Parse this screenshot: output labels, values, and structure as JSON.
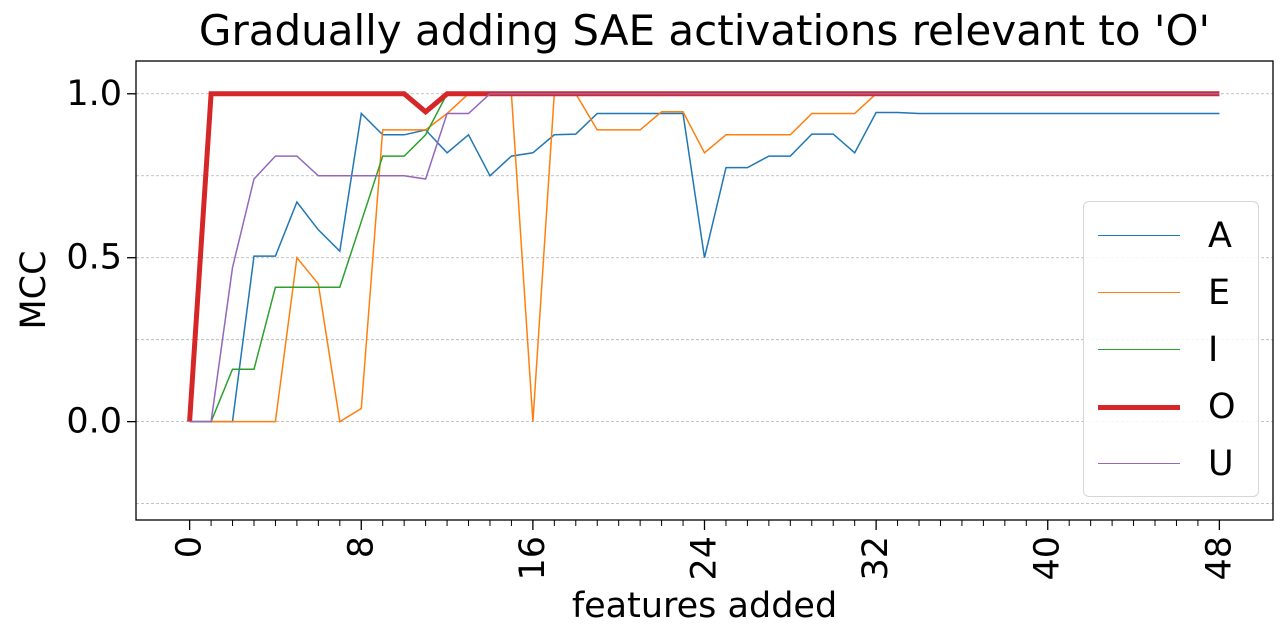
{
  "chart_data": {
    "type": "line",
    "title": "Gradually adding SAE activations relevant to 'O'",
    "xlabel": "features added",
    "ylabel": "MCC",
    "xlim": [
      -2.5,
      50.5
    ],
    "ylim": [
      -0.3,
      1.1
    ],
    "x_major_ticks": [
      0,
      8,
      16,
      24,
      32,
      40,
      48
    ],
    "x_tick_labels": [
      "0",
      "8",
      "16",
      "24",
      "32",
      "40",
      "48"
    ],
    "y_major_ticks": [
      0.0,
      0.5,
      1.0
    ],
    "y_tick_labels": [
      "0.0",
      "0.5",
      "1.0"
    ],
    "y_grid": [
      -0.25,
      0.0,
      0.25,
      0.5,
      0.75,
      1.0
    ],
    "grid": "horizontal dashed",
    "legend_position": "center-right",
    "x": [
      0,
      1,
      2,
      3,
      4,
      5,
      6,
      7,
      8,
      9,
      10,
      11,
      12,
      13,
      14,
      15,
      16,
      17,
      18,
      19,
      20,
      21,
      22,
      23,
      24,
      25,
      26,
      27,
      28,
      29,
      30,
      31,
      32,
      33,
      34,
      35,
      36,
      37,
      38,
      39,
      40,
      41,
      42,
      43,
      44,
      45,
      46,
      47,
      48
    ],
    "series": [
      {
        "name": "A",
        "color": "#1f77b4",
        "width": 1.5,
        "values": [
          0,
          0,
          0,
          0.505,
          0.505,
          0.67,
          0.585,
          0.52,
          0.94,
          0.875,
          0.875,
          0.89,
          0.82,
          0.875,
          0.75,
          0.81,
          0.82,
          0.875,
          0.877,
          0.94,
          0.94,
          0.94,
          0.94,
          0.94,
          0.5,
          0.775,
          0.775,
          0.81,
          0.81,
          0.877,
          0.877,
          0.82,
          0.943,
          0.943,
          0.94,
          0.94,
          0.94,
          0.94,
          0.94,
          0.94,
          0.94,
          0.94,
          0.94,
          0.94,
          0.94,
          0.94,
          0.94,
          0.94,
          0.94
        ]
      },
      {
        "name": "E",
        "color": "#ff7f0e",
        "width": 1.5,
        "values": [
          0,
          0,
          0,
          0,
          0,
          0.5,
          0.42,
          0,
          0.04,
          0.89,
          0.89,
          0.89,
          0.94,
          1.0,
          1.0,
          1.0,
          0,
          1.0,
          1.0,
          0.89,
          0.89,
          0.89,
          0.945,
          0.945,
          0.82,
          0.875,
          0.875,
          0.875,
          0.875,
          0.94,
          0.94,
          0.94,
          1.0,
          1.0,
          1.0,
          1.0,
          1.0,
          1.0,
          1.0,
          1.0,
          1.0,
          1.0,
          1.0,
          1.0,
          1.0,
          1.0,
          1.0,
          1.0,
          1.0
        ]
      },
      {
        "name": "I",
        "color": "#2ca02c",
        "width": 1.5,
        "values": [
          0,
          0,
          0.16,
          0.16,
          0.41,
          0.41,
          0.41,
          0.41,
          0.61,
          0.81,
          0.81,
          0.875,
          1.0,
          1.0,
          1.0,
          1.0,
          1.0,
          1.0,
          1.0,
          1.0,
          1.0,
          1.0,
          1.0,
          1.0,
          1.0,
          1.0,
          1.0,
          1.0,
          1.0,
          1.0,
          1.0,
          1.0,
          1.0,
          1.0,
          1.0,
          1.0,
          1.0,
          1.0,
          1.0,
          1.0,
          1.0,
          1.0,
          1.0,
          1.0,
          1.0,
          1.0,
          1.0,
          1.0,
          1.0
        ]
      },
      {
        "name": "O",
        "color": "#d62728",
        "width": 5,
        "values": [
          0,
          1.0,
          1.0,
          1.0,
          1.0,
          1.0,
          1.0,
          1.0,
          1.0,
          1.0,
          1.0,
          0.945,
          1.0,
          1.0,
          1.0,
          1.0,
          1.0,
          1.0,
          1.0,
          1.0,
          1.0,
          1.0,
          1.0,
          1.0,
          1.0,
          1.0,
          1.0,
          1.0,
          1.0,
          1.0,
          1.0,
          1.0,
          1.0,
          1.0,
          1.0,
          1.0,
          1.0,
          1.0,
          1.0,
          1.0,
          1.0,
          1.0,
          1.0,
          1.0,
          1.0,
          1.0,
          1.0,
          1.0,
          1.0
        ]
      },
      {
        "name": "U",
        "color": "#9467bd",
        "width": 1.5,
        "values": [
          0,
          0,
          0.47,
          0.74,
          0.81,
          0.81,
          0.75,
          0.75,
          0.75,
          0.75,
          0.75,
          0.74,
          0.94,
          0.94,
          1.0,
          1.0,
          1.0,
          1.0,
          1.0,
          1.0,
          1.0,
          1.0,
          1.0,
          1.0,
          1.0,
          1.0,
          1.0,
          1.0,
          1.0,
          1.0,
          1.0,
          1.0,
          1.0,
          1.0,
          1.0,
          1.0,
          1.0,
          1.0,
          1.0,
          1.0,
          1.0,
          1.0,
          1.0,
          1.0,
          1.0,
          1.0,
          1.0,
          1.0,
          1.0
        ]
      }
    ]
  }
}
